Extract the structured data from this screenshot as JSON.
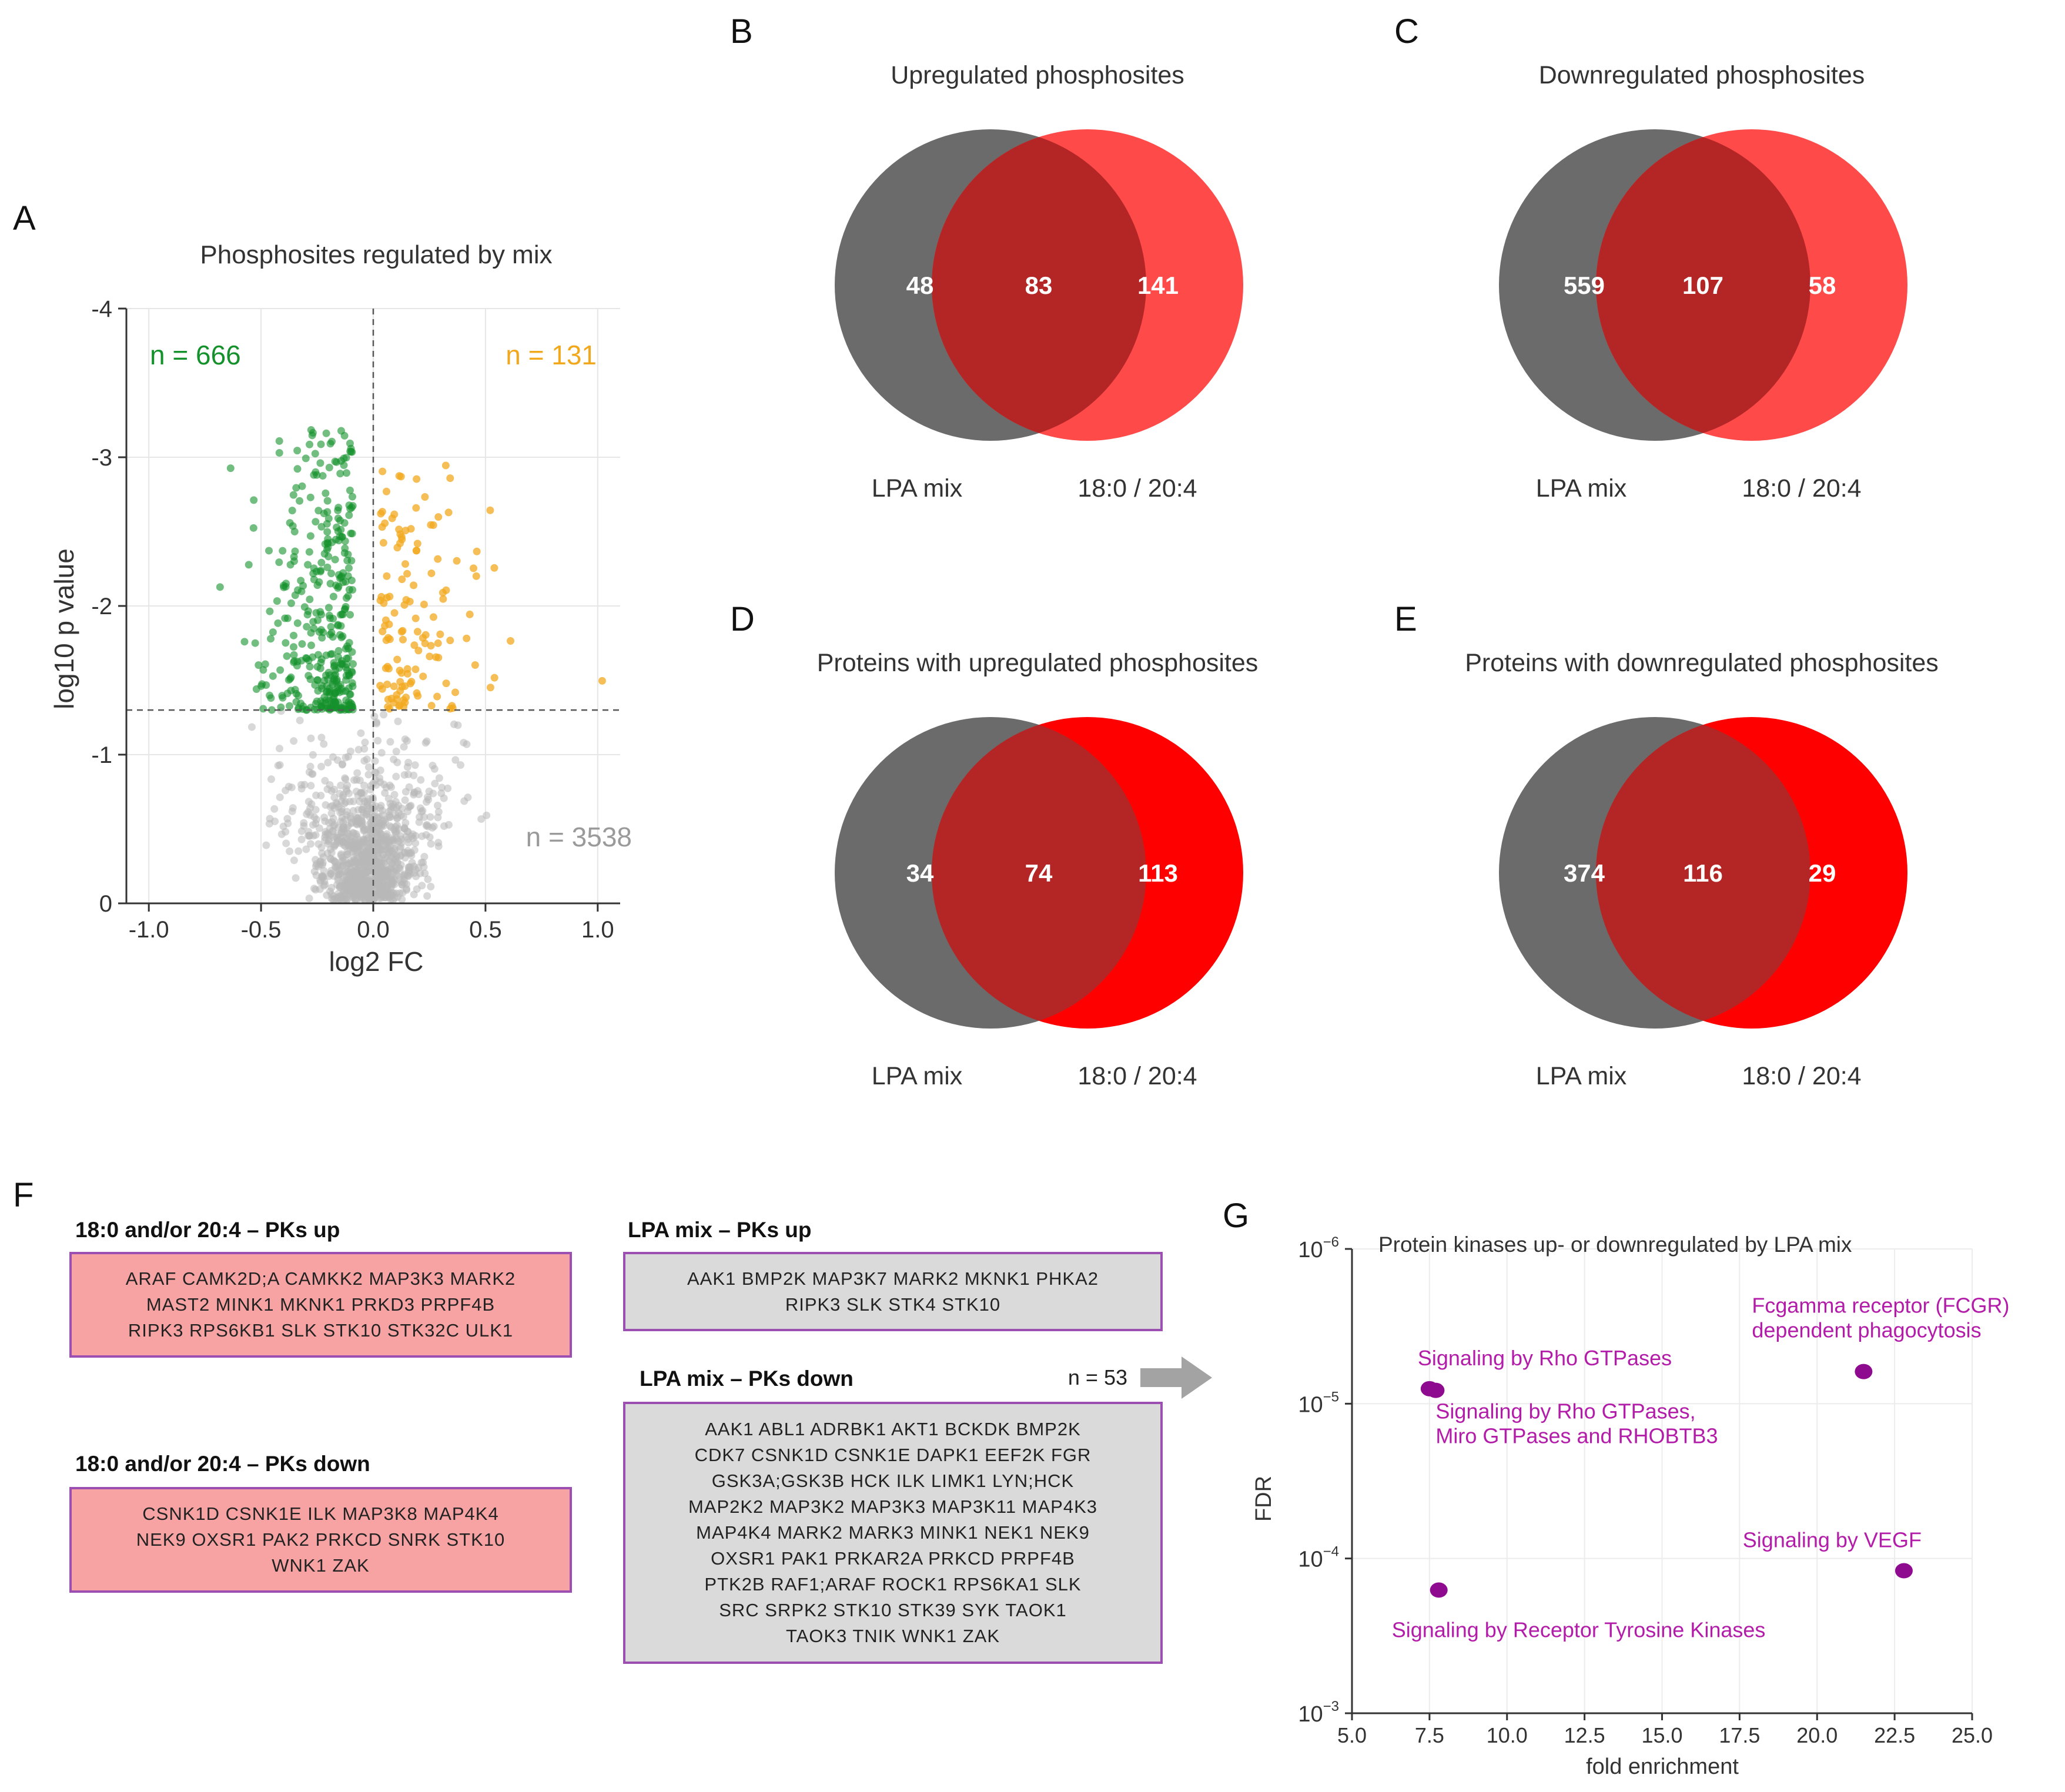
{
  "panel_letters": {
    "A": "A",
    "B": "B",
    "C": "C",
    "D": "D",
    "E": "E",
    "F": "F",
    "G": "G"
  },
  "colors": {
    "green": "#14912b",
    "orange": "#f2a81d",
    "grey_point": "#b8b8b8",
    "venn_grey": "#6b6b6b",
    "venn_red_light": "#ff4a4a",
    "venn_red_full": "#ff0000",
    "overlap": "#b42626",
    "purple": "#8e0a8e",
    "label_purple": "#b21ca8",
    "box_border": "#9b4fb0"
  },
  "panel_f": {
    "boxes": [
      {
        "title": "18:0 and/or 20:4 – PKs up",
        "lines": [
          "ARAF CAMK2D;A CAMKK2 MAP3K3 MARK2",
          "MAST2 MINK1 MKNK1 PRKD3 PRPF4B",
          "RIPK3 RPS6KB1 SLK STK10 STK32C ULK1"
        ]
      },
      {
        "title": "18:0 and/or 20:4 – PKs down",
        "lines": [
          "CSNK1D  CSNK1E  ILK  MAP3K8  MAP4K4",
          "NEK9  OXSR1  PAK2  PRKCD  SNRK  STK10",
          "WNK1  ZAK"
        ]
      },
      {
        "title": "LPA mix – PKs up",
        "lines": [
          "AAK1 BMP2K MAP3K7 MARK2 MKNK1 PHKA2",
          "RIPK3 SLK STK4 STK10"
        ]
      },
      {
        "title": "LPA mix – PKs down",
        "lines": [
          "AAK1  ABL1  ADRBK1  AKT1  BCKDK  BMP2K",
          "CDK7  CSNK1D  CSNK1E  DAPK1  EEF2K  FGR",
          "GSK3A;GSK3B  HCK  ILK  LIMK1  LYN;HCK",
          "MAP2K2  MAP3K2  MAP3K3  MAP3K11  MAP4K3",
          "MAP4K4  MARK2  MARK3  MINK1  NEK1  NEK9",
          "OXSR1  PAK1  PRKAR2A  PRKCD  PRPF4B",
          "PTK2B  RAF1;ARAF  ROCK1  RPS6KA1  SLK",
          "SRC  SRPK2  STK10  STK39  SYK  TAOK1",
          "TAOK3  TNIK  WNK1  ZAK"
        ]
      }
    ],
    "arrow_label": "n = 53"
  },
  "chart_data": [
    {
      "panel": "A",
      "type": "scatter",
      "title": "Phosphosites regulated by mix",
      "xlabel": "log2 FC",
      "ylabel": "log10 p value",
      "xlim": [
        -1.1,
        1.1
      ],
      "ylim": [
        0,
        -4
      ],
      "xticks": [
        -1.0,
        -0.5,
        0.0,
        0.5,
        1.0
      ],
      "xtick_labels": [
        "-1.0",
        "-0.5",
        "0.0",
        "0.5",
        "1.0"
      ],
      "yticks": [
        0,
        -1,
        -2,
        -3,
        -4
      ],
      "ytick_labels": [
        "0",
        "-1",
        "-2",
        "-3",
        "-4"
      ],
      "threshold_y": -1.3,
      "threshold_x": 0.0,
      "grid": true,
      "annotations": [
        {
          "text": "n = 666",
          "color": "green",
          "anchor": "top-left"
        },
        {
          "text": "n = 131",
          "color": "orange",
          "anchor": "top-right"
        },
        {
          "text": "n = 3538",
          "color": "grey",
          "anchor": "bottom-right"
        }
      ],
      "series": [
        {
          "name": "down",
          "count": 666,
          "color": "green"
        },
        {
          "name": "up",
          "count": 131,
          "color": "orange"
        },
        {
          "name": "not significant",
          "count": 3538,
          "color": "grey"
        }
      ]
    },
    {
      "panel": "B",
      "type": "venn",
      "title": "Upregulated phosphosites",
      "sets": [
        "LPA mix",
        "18:0 / 20:4"
      ],
      "values": {
        "only_a": 48,
        "both": 83,
        "only_b": 141
      },
      "style": "light"
    },
    {
      "panel": "C",
      "type": "venn",
      "title": "Downregulated phosphosites",
      "sets": [
        "LPA mix",
        "18:0 / 20:4"
      ],
      "values": {
        "only_a": 559,
        "both": 107,
        "only_b": 58
      },
      "style": "light"
    },
    {
      "panel": "D",
      "type": "venn",
      "title": "Proteins with upregulated phosphosites",
      "sets": [
        "LPA mix",
        "18:0 / 20:4"
      ],
      "values": {
        "only_a": 34,
        "both": 74,
        "only_b": 113
      },
      "style": "full"
    },
    {
      "panel": "E",
      "type": "venn",
      "title": "Proteins with downregulated phosphosites",
      "sets": [
        "LPA mix",
        "18:0 / 20:4"
      ],
      "values": {
        "only_a": 374,
        "both": 116,
        "only_b": 29
      },
      "style": "full"
    },
    {
      "panel": "G",
      "type": "scatter",
      "title": "Protein kinases up- or downregulated by LPA mix",
      "xlabel": "fold enrichment",
      "ylabel": "FDR",
      "xlim": [
        5.0,
        25.0
      ],
      "xticks": [
        5.0,
        7.5,
        10.0,
        12.5,
        15.0,
        17.5,
        20.0,
        22.5,
        25.0
      ],
      "xtick_labels": [
        "5.0",
        "7.5",
        "10.0",
        "12.5",
        "15.0",
        "17.5",
        "20.0",
        "22.5",
        "25.0"
      ],
      "ylog_range": [
        -6,
        -3
      ],
      "yticks": [
        {
          "base": "10",
          "exp": "−6",
          "log": -6
        },
        {
          "base": "10",
          "exp": "−5",
          "log": -5
        },
        {
          "base": "10",
          "exp": "−4",
          "log": -4
        },
        {
          "base": "10",
          "exp": "−3",
          "log": -3
        }
      ],
      "grid": true,
      "points": [
        {
          "label": "Signaling by Rho GTPases",
          "x": 7.5,
          "fdr": 8e-06,
          "label_pos": "above"
        },
        {
          "label": "Signaling by Rho GTPases, Miro GTPases and RHOBTB3",
          "label_lines": [
            "Signaling by Rho GTPases,",
            "Miro GTPases and RHOBTB3"
          ],
          "x": 7.7,
          "fdr": 8.2e-06,
          "label_pos": "below-right"
        },
        {
          "label": "Signaling by Receptor Tyrosine Kinases",
          "x": 7.8,
          "fdr": 0.00016,
          "label_pos": "below"
        },
        {
          "label": "Fcgamma receptor (FCGR) dependent phagocytosis",
          "label_lines": [
            "Fcgamma receptor (FCGR)",
            "dependent phagocytosis"
          ],
          "x": 21.5,
          "fdr": 6.2e-06,
          "label_pos": "above"
        },
        {
          "label": "Signaling by VEGF",
          "x": 22.8,
          "fdr": 0.00012,
          "label_pos": "above-left"
        }
      ]
    }
  ]
}
